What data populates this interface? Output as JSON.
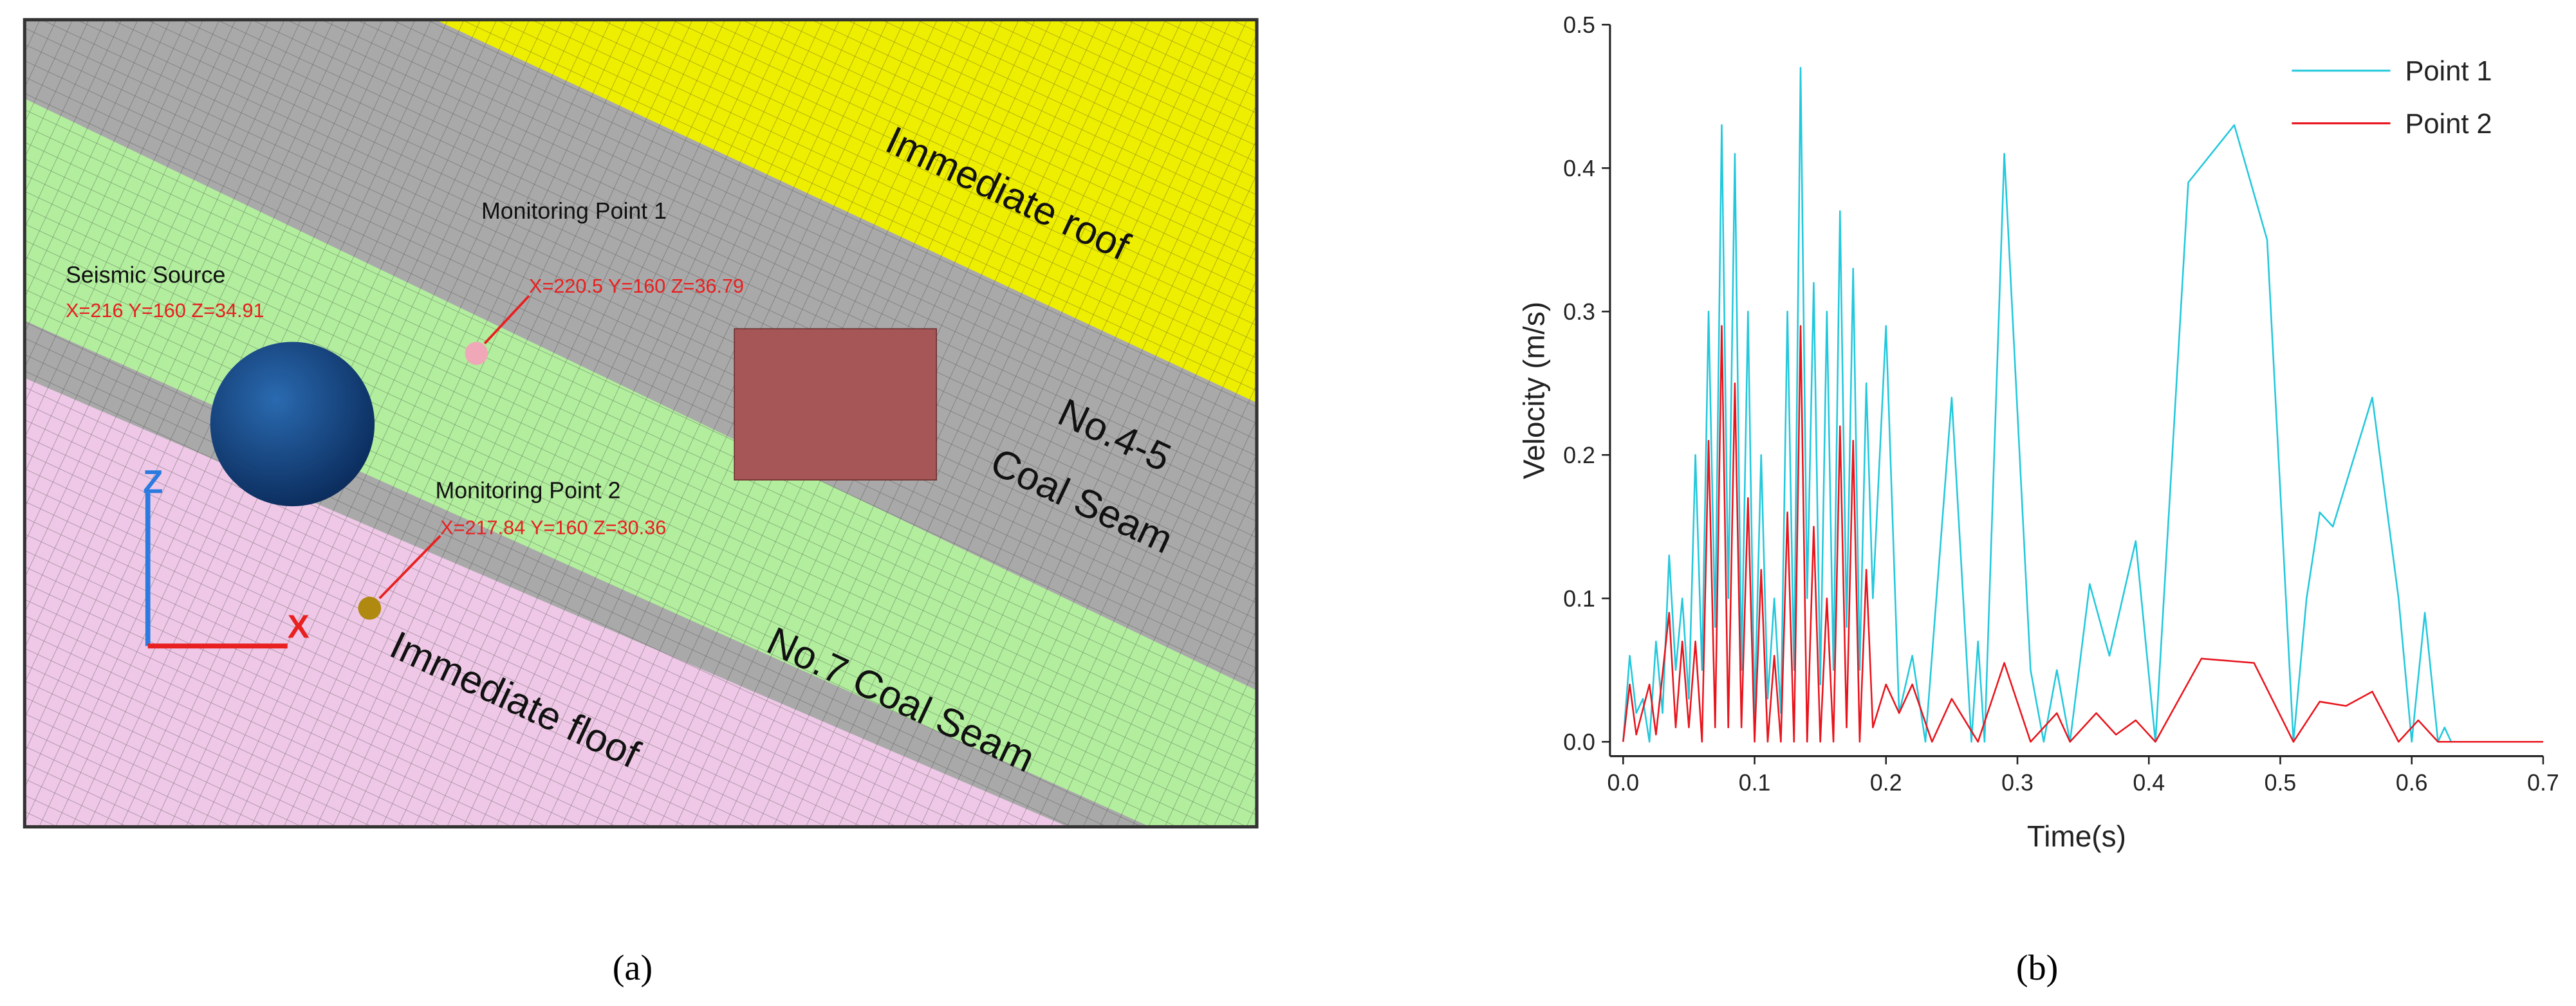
{
  "panel_a": {
    "seismic_source": {
      "label": "Seismic Source",
      "coords": "X=216 Y=160 Z=34.91"
    },
    "monitoring_point_1": {
      "label": "Monitoring Point 1",
      "coords": "X=220.5 Y=160 Z=36.79"
    },
    "monitoring_point_2": {
      "label": "Monitoring Point 2",
      "coords": "X=217.84 Y=160 Z=30.36"
    },
    "layers": {
      "roof": "Immediate roof",
      "seam_45_a": "No.4-5",
      "seam_45_b": "Coal Seam",
      "seam_7": "No.7 Coal Seam",
      "floor": "Immediate floof"
    },
    "axes": {
      "z": "Z",
      "x": "X"
    }
  },
  "captions": [
    "(a)",
    "(b)"
  ],
  "chart_data": {
    "type": "line",
    "x_label": "Time(s)",
    "y_label": "Velocity (m/s)",
    "xlim": [
      -0.01,
      0.7
    ],
    "ylim": [
      -0.01,
      0.5
    ],
    "xticks": [
      {
        "value": 0,
        "label": "0.0"
      },
      0.1,
      0.2,
      0.3,
      0.4,
      0.5,
      0.6,
      0.7
    ],
    "yticks": [
      {
        "value": 0,
        "label": "0.0"
      },
      0.1,
      0.2,
      0.3,
      0.4,
      0.5
    ],
    "legend": "top-right",
    "series": [
      {
        "name": "Point 1",
        "color": "#22c8dc",
        "x": [
          0,
          0.005,
          0.01,
          0.015,
          0.02,
          0.025,
          0.03,
          0.035,
          0.04,
          0.045,
          0.05,
          0.055,
          0.06,
          0.065,
          0.07,
          0.075,
          0.08,
          0.085,
          0.09,
          0.095,
          0.1,
          0.105,
          0.11,
          0.115,
          0.12,
          0.125,
          0.13,
          0.135,
          0.14,
          0.145,
          0.15,
          0.155,
          0.16,
          0.165,
          0.17,
          0.175,
          0.18,
          0.185,
          0.19,
          0.2,
          0.21,
          0.22,
          0.23,
          0.25,
          0.265,
          0.27,
          0.275,
          0.29,
          0.31,
          0.32,
          0.33,
          0.34,
          0.355,
          0.37,
          0.39,
          0.405,
          0.43,
          0.465,
          0.49,
          0.51,
          0.52,
          0.53,
          0.54,
          0.57,
          0.59,
          0.6,
          0.61,
          0.62,
          0.625,
          0.63,
          0.7
        ],
        "values": [
          0,
          0.06,
          0.02,
          0.03,
          0,
          0.07,
          0.02,
          0.13,
          0.05,
          0.1,
          0.03,
          0.2,
          0.05,
          0.3,
          0.08,
          0.43,
          0.1,
          0.41,
          0.05,
          0.3,
          0.02,
          0.2,
          0.03,
          0.1,
          0.02,
          0.3,
          0.05,
          0.47,
          0.1,
          0.32,
          0.04,
          0.3,
          0.05,
          0.37,
          0.08,
          0.33,
          0.05,
          0.25,
          0.1,
          0.29,
          0.02,
          0.06,
          0,
          0.24,
          0,
          0.07,
          0,
          0.41,
          0.05,
          0,
          0.05,
          0,
          0.11,
          0.06,
          0.14,
          0,
          0.39,
          0.43,
          0.35,
          0,
          0.1,
          0.16,
          0.15,
          0.24,
          0.1,
          0,
          0.09,
          0,
          0.01,
          0,
          0
        ]
      },
      {
        "name": "Point 2",
        "color": "#e8141c",
        "x": [
          0,
          0.005,
          0.01,
          0.02,
          0.025,
          0.035,
          0.04,
          0.045,
          0.05,
          0.055,
          0.06,
          0.065,
          0.07,
          0.075,
          0.08,
          0.085,
          0.09,
          0.095,
          0.1,
          0.105,
          0.11,
          0.115,
          0.12,
          0.125,
          0.13,
          0.135,
          0.14,
          0.145,
          0.15,
          0.155,
          0.16,
          0.165,
          0.17,
          0.175,
          0.18,
          0.185,
          0.19,
          0.2,
          0.21,
          0.22,
          0.235,
          0.25,
          0.27,
          0.29,
          0.31,
          0.33,
          0.34,
          0.36,
          0.375,
          0.39,
          0.405,
          0.44,
          0.48,
          0.51,
          0.53,
          0.55,
          0.57,
          0.59,
          0.605,
          0.62,
          0.7
        ],
        "values": [
          0,
          0.04,
          0.005,
          0.04,
          0.005,
          0.09,
          0.01,
          0.07,
          0.01,
          0.07,
          0,
          0.21,
          0.01,
          0.29,
          0.01,
          0.25,
          0.01,
          0.17,
          0,
          0.12,
          0,
          0.06,
          0,
          0.16,
          0,
          0.29,
          0,
          0.15,
          0,
          0.1,
          0,
          0.22,
          0.01,
          0.21,
          0,
          0.12,
          0.01,
          0.04,
          0.02,
          0.04,
          0,
          0.03,
          0,
          0.055,
          0,
          0.02,
          0,
          0.02,
          0.005,
          0.015,
          0,
          0.058,
          0.055,
          0,
          0.028,
          0.025,
          0.035,
          0,
          0.015,
          0,
          0
        ]
      }
    ]
  }
}
